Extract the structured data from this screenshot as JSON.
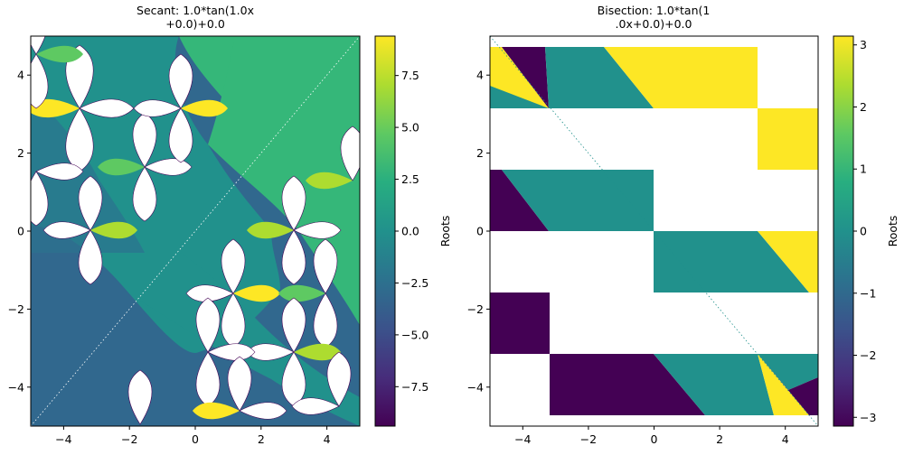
{
  "chart_data": [
    {
      "type": "heatmap",
      "title": [
        "Secant: 1.0*tan(1.0x",
        "+0.0)+0.0"
      ],
      "xlim": [
        -5,
        5
      ],
      "ylim": [
        -5,
        5
      ],
      "x_ticks": [
        -4,
        -2,
        0,
        2,
        4
      ],
      "y_ticks": [
        -4,
        -2,
        0,
        2,
        4
      ],
      "x_tick_labels": [
        "−4",
        "−2",
        "0",
        "2",
        "4"
      ],
      "y_tick_labels": [
        "−4",
        "−2",
        "0",
        "2",
        "4"
      ],
      "colorbar": {
        "label": "Roots",
        "range": [
          -9.4,
          9.4
        ],
        "ticks": [
          -7.5,
          -5.0,
          -2.5,
          0.0,
          2.5,
          5.0,
          7.5
        ],
        "tick_labels": [
          "−7.5",
          "−5.0",
          "−2.5",
          "0.0",
          "2.5",
          "5.0",
          "7.5"
        ],
        "colormap": "viridis"
      }
    },
    {
      "type": "heatmap",
      "title": [
        "Bisection: 1.0*tan(1",
        ".0x+0.0)+0.0"
      ],
      "xlim": [
        -5,
        5
      ],
      "ylim": [
        -5,
        5
      ],
      "x_ticks": [
        -4,
        -2,
        0,
        2,
        4
      ],
      "y_ticks": [
        -4,
        -2,
        0,
        2,
        4
      ],
      "x_tick_labels": [
        "−4",
        "−2",
        "0",
        "2",
        "4"
      ],
      "y_tick_labels": [
        "−4",
        "−2",
        "0",
        "2",
        "4"
      ],
      "colorbar": {
        "label": "Roots",
        "range": [
          -3.14159,
          3.14159
        ],
        "ticks": [
          -3,
          -2,
          -1,
          0,
          1,
          2,
          3
        ],
        "tick_labels": [
          "−3",
          "−2",
          "−1",
          "0",
          "1",
          "2",
          "3"
        ],
        "colormap": "viridis"
      }
    }
  ],
  "colors": {
    "viridis_dark": "#440154",
    "viridis_blue": "#31688e",
    "viridis_teal": "#21918c",
    "viridis_green": "#35b779",
    "viridis_yellow": "#fde725"
  }
}
